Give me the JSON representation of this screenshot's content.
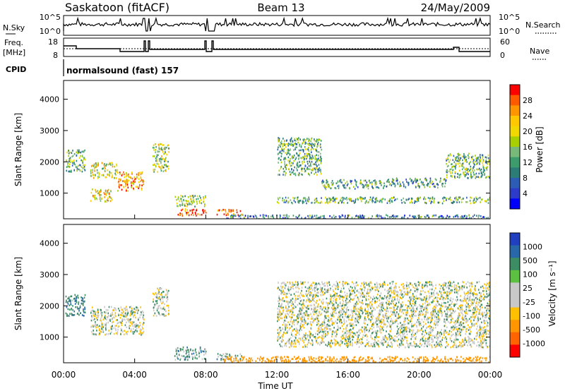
{
  "header": {
    "station": "Saskatoon (fitACF)",
    "beam": "Beam 13",
    "date": "24/May/2009"
  },
  "panels": {
    "nsky": {
      "left_label": "N.Sky",
      "right_label": "N.Search",
      "ticks_left": [
        "10^5",
        "10^0"
      ],
      "ticks_right": [
        "10^5",
        "10^0"
      ]
    },
    "freq": {
      "left_label_1": "Freq.",
      "left_label_2": "[MHz]",
      "right_label": "Nave",
      "ticks_left": [
        "18",
        "8"
      ],
      "ticks_right": [
        "60",
        "0"
      ]
    },
    "cpid": {
      "label": "CPID",
      "text": "normalsound (fast) 157"
    }
  },
  "colorbars": {
    "power": {
      "label": "Power [dB]",
      "ticks": [
        "28",
        "24",
        "20",
        "16",
        "12",
        "8",
        "4"
      ],
      "colors": [
        "#ff0000",
        "#ff5a00",
        "#ff9600",
        "#ffc800",
        "#f0d800",
        "#a8d000",
        "#78b878",
        "#3c9c6c",
        "#2c7c78",
        "#2c5cb4",
        "#2c3cc8",
        "#0000ff"
      ]
    },
    "velocity": {
      "label": "Velocity [m s⁻¹]",
      "ticks": [
        "1000",
        "500",
        "100",
        "25",
        "-25",
        "-100",
        "-500",
        "-1000"
      ],
      "colors": [
        "#2040c0",
        "#2868a8",
        "#3c8c64",
        "#5cc040",
        "#c8c8c8",
        "#c8c8c8",
        "#ffc000",
        "#ff9600",
        "#ff6400",
        "#ff0000"
      ]
    }
  },
  "x_axis": {
    "label": "Time UT",
    "ticks": [
      "00:00",
      "04:00",
      "08:00",
      "12:00",
      "16:00",
      "20:00",
      "00:00"
    ]
  },
  "chart_data": [
    {
      "type": "heatmap",
      "name": "power",
      "ylabel": "Slant Range [km]",
      "xlabel": "",
      "y_ticks": [
        1000,
        2000,
        3000,
        4000
      ],
      "ylim": [
        180,
        4600
      ],
      "x_range_hours": [
        0,
        24
      ],
      "color_scale": "Power [dB]",
      "zlim": [
        0,
        30
      ],
      "regions": [
        {
          "t0": 0.1,
          "t1": 1.2,
          "r0": 1700,
          "r1": 2400,
          "value": 12
        },
        {
          "t0": 1.5,
          "t1": 3.0,
          "r0": 1500,
          "r1": 2000,
          "value": 18
        },
        {
          "t0": 3.0,
          "t1": 4.5,
          "r0": 1100,
          "r1": 1700,
          "value": 24
        },
        {
          "t0": 1.5,
          "t1": 2.7,
          "r0": 750,
          "r1": 1150,
          "value": 20
        },
        {
          "t0": 5.0,
          "t1": 5.9,
          "r0": 1700,
          "r1": 2600,
          "value": 16
        },
        {
          "t0": 6.2,
          "t1": 8.0,
          "r0": 600,
          "r1": 950,
          "value": 14
        },
        {
          "t0": 6.4,
          "t1": 8.0,
          "r0": 300,
          "r1": 520,
          "value": 28
        },
        {
          "t0": 8.6,
          "t1": 10.0,
          "r0": 300,
          "r1": 500,
          "value": 26
        },
        {
          "t0": 12.0,
          "t1": 14.5,
          "r0": 1600,
          "r1": 2800,
          "value": 12
        },
        {
          "t0": 14.5,
          "t1": 18.0,
          "r0": 1150,
          "r1": 1450,
          "value": 11
        },
        {
          "t0": 18.0,
          "t1": 21.5,
          "r0": 1200,
          "r1": 1500,
          "value": 10
        },
        {
          "t0": 12.0,
          "t1": 24.0,
          "r0": 700,
          "r1": 900,
          "value": 12
        },
        {
          "t0": 9.0,
          "t1": 24.0,
          "r0": 180,
          "r1": 330,
          "value": 8
        },
        {
          "t0": 21.5,
          "t1": 24.0,
          "r0": 1500,
          "r1": 2300,
          "value": 12
        }
      ]
    },
    {
      "type": "heatmap",
      "name": "velocity",
      "ylabel": "Slant Range [km]",
      "xlabel": "Time UT",
      "y_ticks": [
        1000,
        2000,
        3000,
        4000
      ],
      "ylim": [
        180,
        4600
      ],
      "x_range_hours": [
        0,
        24
      ],
      "color_scale": "Velocity [m s⁻¹]",
      "zlim": [
        -1000,
        1000
      ],
      "regions": [
        {
          "t0": 0.1,
          "t1": 1.2,
          "r0": 1700,
          "r1": 2400,
          "value": 80
        },
        {
          "t0": 1.5,
          "t1": 4.5,
          "r0": 1100,
          "r1": 2000,
          "value": 0
        },
        {
          "t0": 5.0,
          "t1": 5.9,
          "r0": 1700,
          "r1": 2600,
          "value": 0
        },
        {
          "t0": 6.2,
          "t1": 8.0,
          "r0": 300,
          "r1": 700,
          "value": 60
        },
        {
          "t0": 8.6,
          "t1": 10.0,
          "r0": 300,
          "r1": 500,
          "value": 50
        },
        {
          "t0": 12.0,
          "t1": 24.0,
          "r0": 700,
          "r1": 2800,
          "value": 0
        },
        {
          "t0": 9.0,
          "t1": 24.0,
          "r0": 180,
          "r1": 400,
          "value": -200
        }
      ]
    }
  ]
}
